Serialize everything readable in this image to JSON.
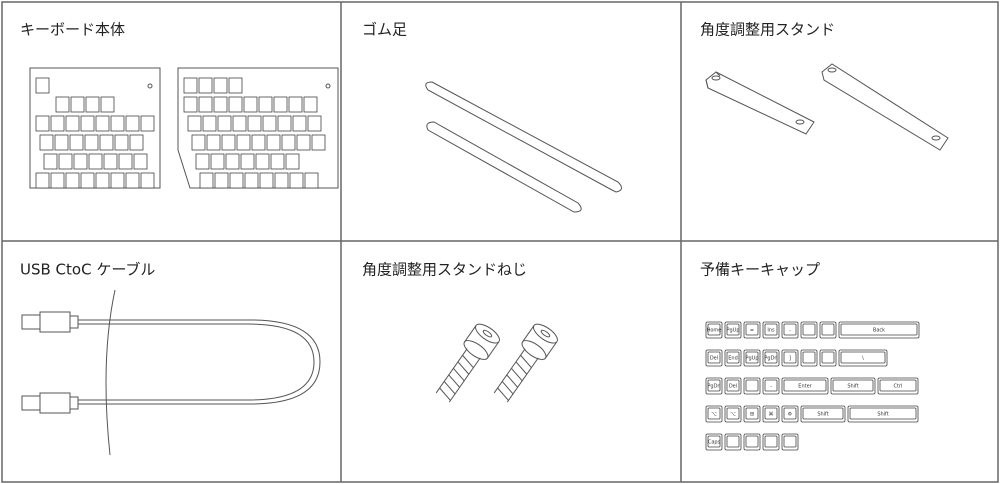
{
  "items": [
    {
      "title": "キーボード本体"
    },
    {
      "title": "ゴム足"
    },
    {
      "title": "角度調整用スタンド"
    },
    {
      "title": "USB CtoC ケーブル"
    },
    {
      "title": "角度調整用スタンドねじ"
    },
    {
      "title": "予備キーキャップ",
      "keycaps": [
        "Home",
        "PgUp",
        "=",
        "Ins",
        "-",
        "Back",
        "Del",
        "End",
        "PgUp",
        "PgDn",
        "]",
        "\\",
        "PgDn",
        "Del",
        "-",
        "Enter",
        "Shift",
        "Ctrl",
        "⌥",
        "⌥",
        "⊞",
        "⌘",
        "⚙",
        "Shift",
        "Shift",
        "Caps"
      ]
    }
  ]
}
